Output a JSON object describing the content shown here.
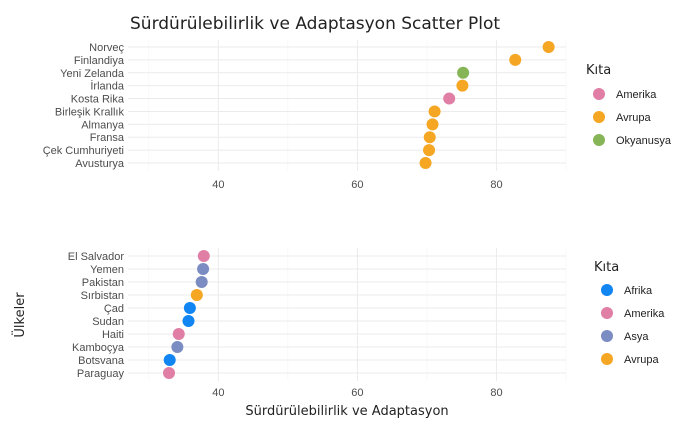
{
  "chart_data": {
    "type": "scatter",
    "title": "Sürdürülebilirlik ve Adaptasyon Scatter Plot",
    "xlabel": "Sürdürülebilirlik ve Adaptasyon",
    "ylabel": "Ülkeler",
    "xlim": [
      27,
      90
    ],
    "xticks": [
      40,
      60,
      80
    ],
    "grid": true,
    "legend_placement": "right",
    "colors": {
      "Afrika": "#1185f2",
      "Amerika": "#e07ea5",
      "Asya": "#7b8cc2",
      "Avrupa": "#f5a623",
      "Okyanusya": "#86b557"
    },
    "panels": [
      {
        "legend_title": "Kıta",
        "legend": [
          "Amerika",
          "Avrupa",
          "Okyanusya"
        ],
        "points": [
          {
            "label": "Norveç",
            "x": 87.5,
            "group": "Avrupa"
          },
          {
            "label": "Finlandiya",
            "x": 82.7,
            "group": "Avrupa"
          },
          {
            "label": "Yeni Zelanda",
            "x": 75.2,
            "group": "Okyanusya"
          },
          {
            "label": "İrlanda",
            "x": 75.1,
            "group": "Avrupa"
          },
          {
            "label": "Kosta Rika",
            "x": 73.2,
            "group": "Amerika"
          },
          {
            "label": "Birleşik Krallık",
            "x": 71.1,
            "group": "Avrupa"
          },
          {
            "label": "Almanya",
            "x": 70.8,
            "group": "Avrupa"
          },
          {
            "label": "Fransa",
            "x": 70.4,
            "group": "Avrupa"
          },
          {
            "label": "Çek Cumhuriyeti",
            "x": 70.3,
            "group": "Avrupa"
          },
          {
            "label": "Avusturya",
            "x": 69.8,
            "group": "Avrupa"
          }
        ]
      },
      {
        "legend_title": "Kıta",
        "legend": [
          "Afrika",
          "Amerika",
          "Asya",
          "Avrupa"
        ],
        "points": [
          {
            "label": "El Salvador",
            "x": 37.9,
            "group": "Amerika"
          },
          {
            "label": "Yemen",
            "x": 37.8,
            "group": "Asya"
          },
          {
            "label": "Pakistan",
            "x": 37.6,
            "group": "Asya"
          },
          {
            "label": "Sırbistan",
            "x": 36.9,
            "group": "Avrupa"
          },
          {
            "label": "Çad",
            "x": 35.9,
            "group": "Afrika"
          },
          {
            "label": "Sudan",
            "x": 35.7,
            "group": "Afrika"
          },
          {
            "label": "Haiti",
            "x": 34.3,
            "group": "Amerika"
          },
          {
            "label": "Kamboçya",
            "x": 34.1,
            "group": "Asya"
          },
          {
            "label": "Botsvana",
            "x": 33.0,
            "group": "Afrika"
          },
          {
            "label": "Paraguay",
            "x": 32.9,
            "group": "Amerika"
          }
        ]
      }
    ]
  }
}
